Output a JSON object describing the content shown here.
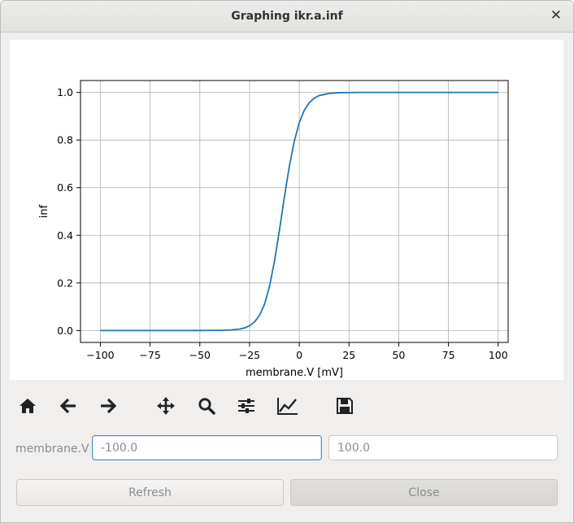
{
  "window": {
    "title": "Graphing ikr.a.inf",
    "close_glyph": "✕"
  },
  "chart_data": {
    "type": "line",
    "title": "",
    "xlabel": "membrane.V [mV]",
    "ylabel": "inf",
    "xlim": [
      -110,
      105
    ],
    "ylim": [
      -0.05,
      1.05
    ],
    "xticks": [
      -100,
      -75,
      -50,
      -25,
      0,
      25,
      50,
      75,
      100
    ],
    "yticks": [
      0.0,
      0.2,
      0.4,
      0.6,
      0.8,
      1.0
    ],
    "xtick_labels": [
      "−100",
      "−75",
      "−50",
      "−25",
      "0",
      "25",
      "50",
      "75",
      "100"
    ],
    "ytick_labels": [
      "0.0",
      "0.2",
      "0.4",
      "0.6",
      "0.8",
      "1.0"
    ],
    "grid": true,
    "color": "#1f77b4",
    "series": [
      {
        "x": [
          -100,
          -90,
          -80,
          -70,
          -60,
          -50,
          -40,
          -35,
          -30,
          -27.5,
          -25,
          -22.5,
          -20,
          -17.5,
          -15,
          -12.5,
          -10,
          -7.5,
          -5,
          -2.5,
          0,
          2.5,
          5,
          7.5,
          10,
          15,
          20,
          30,
          40,
          60,
          80,
          100
        ],
        "y": [
          0,
          0,
          0,
          0,
          0,
          0.0001,
          0.0008,
          0.002,
          0.006,
          0.011,
          0.02,
          0.036,
          0.064,
          0.11,
          0.184,
          0.29,
          0.42,
          0.56,
          0.69,
          0.796,
          0.873,
          0.925,
          0.957,
          0.976,
          0.987,
          0.996,
          0.999,
          1,
          1,
          1,
          1,
          1
        ]
      }
    ]
  },
  "toolbar": {
    "icons": [
      "home-icon",
      "back-icon",
      "forward-icon",
      "pan-icon",
      "zoom-icon",
      "configure-subplots-icon",
      "edit-axis-icon",
      "save-icon"
    ]
  },
  "range": {
    "label": "membrane.V",
    "min_value": "-100.0",
    "max_value": "100.0"
  },
  "buttons": {
    "refresh": "Refresh",
    "close": "Close"
  }
}
